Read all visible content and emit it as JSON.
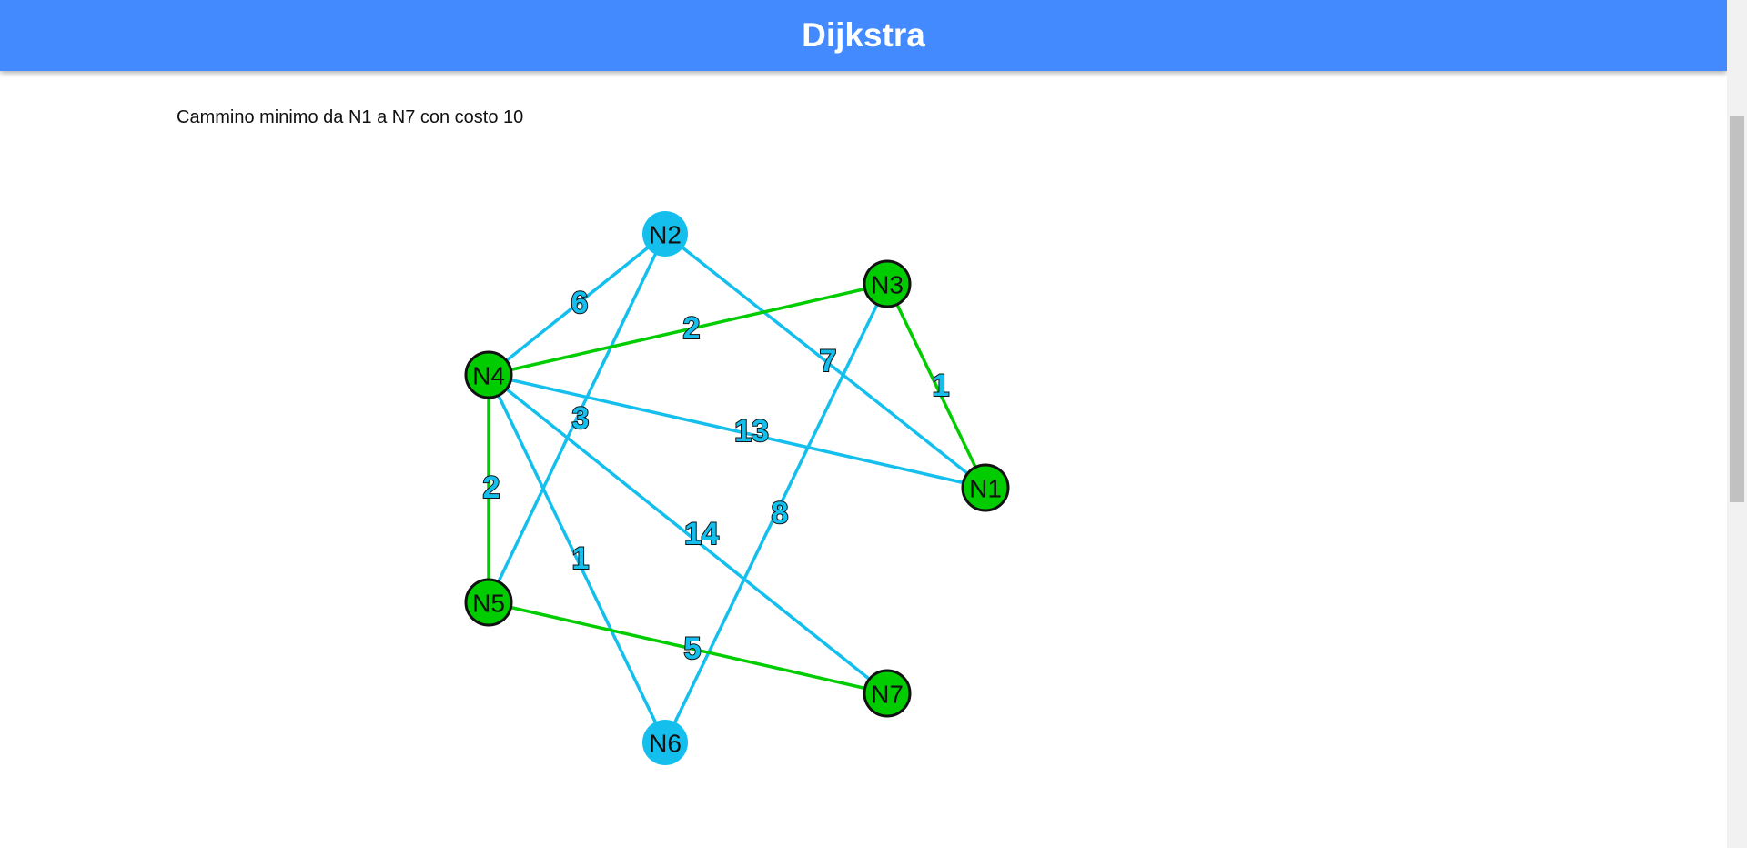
{
  "header": {
    "title": "Dijkstra"
  },
  "result": {
    "text": "Cammino minimo da N1 a N7 con costo 10"
  },
  "colors": {
    "header_bg": "#448aff",
    "edge_default": "#14bfee",
    "edge_path": "#00cc00",
    "node_default": "#14bfee",
    "node_path": "#00cc00",
    "node_border": "#111111"
  },
  "graph": {
    "source": "N1",
    "target": "N7",
    "cost": 10,
    "nodes": [
      {
        "id": "N1",
        "label": "N1",
        "on_path": true
      },
      {
        "id": "N2",
        "label": "N2",
        "on_path": false
      },
      {
        "id": "N3",
        "label": "N3",
        "on_path": true
      },
      {
        "id": "N4",
        "label": "N4",
        "on_path": true
      },
      {
        "id": "N5",
        "label": "N5",
        "on_path": true
      },
      {
        "id": "N6",
        "label": "N6",
        "on_path": false
      },
      {
        "id": "N7",
        "label": "N7",
        "on_path": true
      }
    ],
    "edges": [
      {
        "from": "N2",
        "to": "N4",
        "weight": "6",
        "on_path": false
      },
      {
        "from": "N2",
        "to": "N5",
        "weight": "3",
        "on_path": false
      },
      {
        "from": "N2",
        "to": "N1",
        "weight": "7",
        "on_path": false
      },
      {
        "from": "N3",
        "to": "N4",
        "weight": "2",
        "on_path": true
      },
      {
        "from": "N3",
        "to": "N1",
        "weight": "1",
        "on_path": true
      },
      {
        "from": "N3",
        "to": "N6",
        "weight": "8",
        "on_path": false
      },
      {
        "from": "N4",
        "to": "N1",
        "weight": "13",
        "on_path": false
      },
      {
        "from": "N4",
        "to": "N5",
        "weight": "2",
        "on_path": true
      },
      {
        "from": "N4",
        "to": "N6",
        "weight": "1",
        "on_path": false
      },
      {
        "from": "N4",
        "to": "N7",
        "weight": "14",
        "on_path": false
      },
      {
        "from": "N5",
        "to": "N7",
        "weight": "5",
        "on_path": true
      }
    ]
  }
}
